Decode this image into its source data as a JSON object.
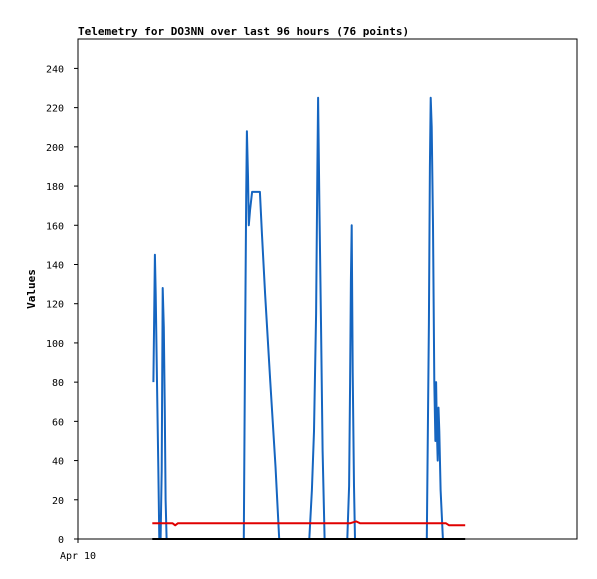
{
  "chart_data": {
    "type": "line",
    "title": "Telemetry for DO3NN over last 96 hours (76 points)",
    "xlabel": "",
    "ylabel": "Values",
    "ylim": [
      0,
      255
    ],
    "xlim": [
      0,
      96
    ],
    "y_ticks": [
      0,
      20,
      40,
      60,
      80,
      100,
      120,
      140,
      160,
      180,
      200,
      220,
      240
    ],
    "x_tick_labels": [
      {
        "x": 0,
        "label": "Apr 10"
      }
    ],
    "grid": false,
    "legend": "none",
    "series": [
      {
        "color": "#1565c0",
        "points": [
          [
            14.5,
            80
          ],
          [
            14.65,
            110
          ],
          [
            14.8,
            145
          ],
          [
            14.95,
            125
          ],
          [
            15.2,
            80
          ],
          [
            15.45,
            37
          ],
          [
            15.65,
            0
          ],
          [
            15.9,
            0
          ],
          [
            16.1,
            35
          ],
          [
            16.3,
            128
          ],
          [
            16.5,
            108
          ],
          [
            16.7,
            65
          ],
          [
            16.85,
            20
          ],
          [
            17.05,
            0
          ],
          [
            31.9,
            0
          ],
          [
            32.15,
            100
          ],
          [
            32.35,
            175
          ],
          [
            32.5,
            208
          ],
          [
            32.7,
            185
          ],
          [
            32.85,
            160
          ],
          [
            33.1,
            168
          ],
          [
            33.5,
            177
          ],
          [
            35.0,
            177
          ],
          [
            35.4,
            155
          ],
          [
            36.0,
            125
          ],
          [
            37.0,
            80
          ],
          [
            38.0,
            37
          ],
          [
            38.7,
            0
          ],
          [
            44.5,
            0
          ],
          [
            45.0,
            25
          ],
          [
            45.4,
            55
          ],
          [
            45.8,
            115
          ],
          [
            46.05,
            190
          ],
          [
            46.2,
            225
          ],
          [
            46.45,
            170
          ],
          [
            46.75,
            110
          ],
          [
            47.05,
            45
          ],
          [
            47.45,
            0
          ],
          [
            51.8,
            0
          ],
          [
            52.15,
            27
          ],
          [
            52.35,
            80
          ],
          [
            52.5,
            132
          ],
          [
            52.65,
            160
          ],
          [
            52.85,
            85
          ],
          [
            53.1,
            27
          ],
          [
            53.3,
            0
          ],
          [
            67.1,
            0
          ],
          [
            67.5,
            110
          ],
          [
            67.7,
            190
          ],
          [
            67.85,
            225
          ],
          [
            68.05,
            210
          ],
          [
            68.3,
            160
          ],
          [
            68.55,
            80
          ],
          [
            68.75,
            50
          ],
          [
            68.9,
            80
          ],
          [
            69.05,
            55
          ],
          [
            69.2,
            40
          ],
          [
            69.35,
            67
          ],
          [
            69.5,
            55
          ],
          [
            69.75,
            25
          ],
          [
            70.2,
            0
          ]
        ]
      },
      {
        "color": "#e00000",
        "points": [
          [
            14.3,
            8
          ],
          [
            18.2,
            8
          ],
          [
            18.7,
            7
          ],
          [
            19.2,
            8
          ],
          [
            52.3,
            8
          ],
          [
            53.5,
            9
          ],
          [
            54.3,
            8
          ],
          [
            70.8,
            8
          ],
          [
            71.4,
            7
          ],
          [
            74.5,
            7
          ]
        ]
      },
      {
        "color": "#000000",
        "points": [
          [
            14.3,
            0
          ],
          [
            74.5,
            0
          ]
        ]
      }
    ]
  }
}
